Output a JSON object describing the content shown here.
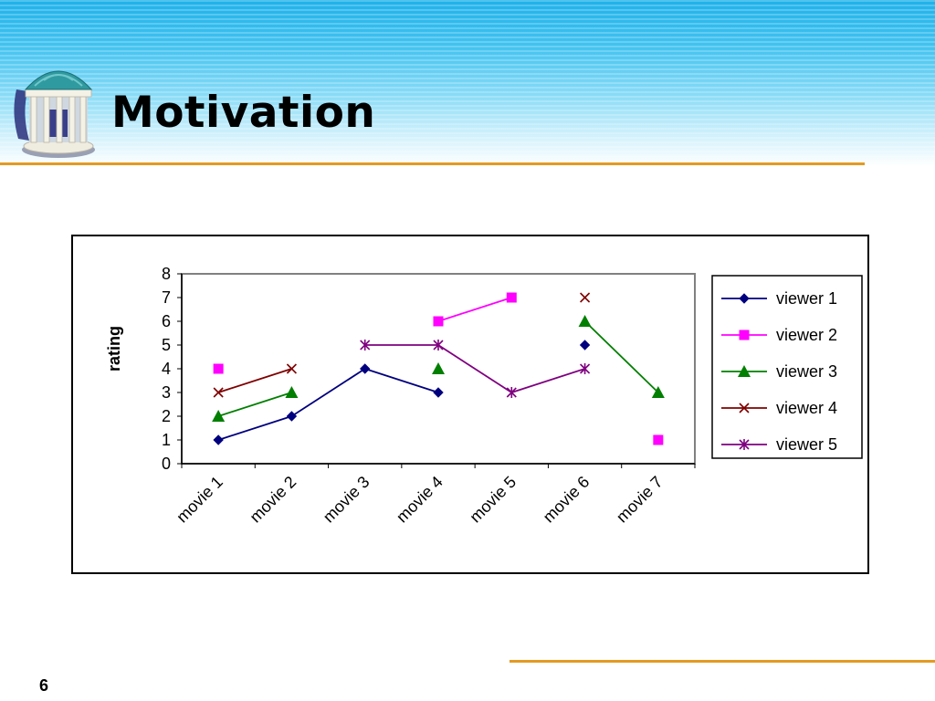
{
  "slide": {
    "title": "Motivation",
    "page_number": "6"
  },
  "logo": {
    "icon": "old-well-rotunda-icon",
    "colors": {
      "dome": "#2f9aa0",
      "columns": "#f4f1e6",
      "shadow": "#2a2f7a"
    }
  },
  "colors": {
    "header_top": "#1fb2ea",
    "rule": "#e39a22",
    "viewer_1": "#00007f",
    "viewer_2": "#ff00ff",
    "viewer_3": "#007f00",
    "viewer_4": "#7f0000",
    "viewer_5": "#7f007f"
  },
  "chart_data": {
    "type": "line",
    "title": "",
    "xlabel": "",
    "ylabel": "rating",
    "ylim": [
      0,
      8
    ],
    "yticks": [
      "0",
      "1",
      "2",
      "3",
      "4",
      "5",
      "6",
      "7",
      "8"
    ],
    "grid": false,
    "legend_position": "right",
    "categories": [
      "movie 1",
      "movie 2",
      "movie 3",
      "movie 4",
      "movie 5",
      "movie 6",
      "movie 7"
    ],
    "series": [
      {
        "name": "viewer 1",
        "marker": "diamond",
        "color": "#00007f",
        "values": [
          1,
          2,
          4,
          3,
          null,
          5,
          null
        ]
      },
      {
        "name": "viewer 2",
        "marker": "square",
        "color": "#ff00ff",
        "values": [
          4,
          null,
          null,
          6,
          7,
          null,
          1
        ]
      },
      {
        "name": "viewer 3",
        "marker": "triangle",
        "color": "#007f00",
        "values": [
          2,
          3,
          null,
          4,
          null,
          6,
          3
        ]
      },
      {
        "name": "viewer 4",
        "marker": "x",
        "color": "#7f0000",
        "values": [
          3,
          4,
          null,
          null,
          null,
          7,
          null
        ]
      },
      {
        "name": "viewer 5",
        "marker": "star",
        "color": "#7f007f",
        "values": [
          null,
          null,
          5,
          5,
          3,
          4,
          null
        ]
      }
    ]
  }
}
